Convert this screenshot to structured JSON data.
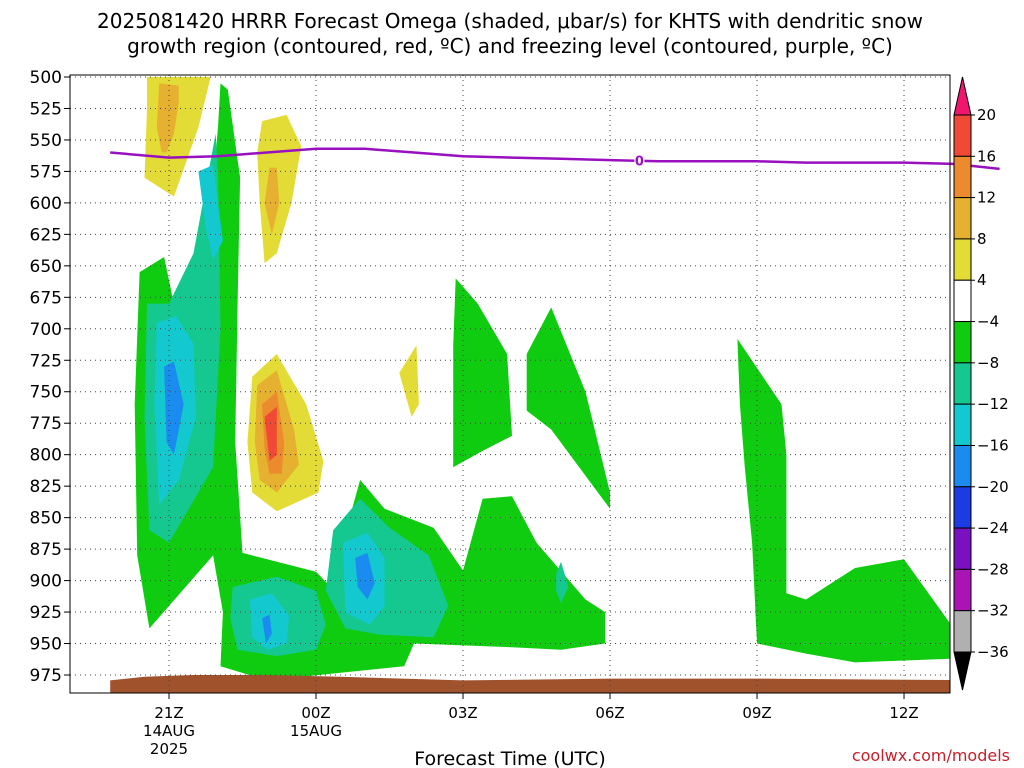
{
  "title": {
    "line1": "2025081420 HRRR Forecast Omega (shaded, μbar/s) for KHTS with dendritic snow",
    "line2": "growth region (contoured, red, ºC) and freezing level (contoured, purple, ºC)"
  },
  "credit": {
    "text": "coolwx.com/models",
    "color": "#c8202a"
  },
  "chart_data": {
    "type": "time-height contour",
    "xlabel": "Forecast Time (UTC)",
    "ylabel": "",
    "x_unit": "hours since 2025-08-14 20Z",
    "x_range": [
      20,
      42
    ],
    "y_range": [
      985,
      500
    ],
    "y_ticks": [
      500,
      525,
      550,
      575,
      600,
      625,
      650,
      675,
      700,
      725,
      750,
      775,
      800,
      825,
      850,
      875,
      900,
      925,
      950,
      975
    ],
    "x_ticks": [
      {
        "x": 21,
        "label": "21Z",
        "date": [
          "14AUG",
          "2025"
        ]
      },
      {
        "x": 24,
        "label": "00Z",
        "date": [
          "15AUG"
        ]
      },
      {
        "x": 27,
        "label": "03Z",
        "date": []
      },
      {
        "x": 30,
        "label": "06Z",
        "date": []
      },
      {
        "x": 33,
        "label": "09Z",
        "date": []
      },
      {
        "x": 36,
        "label": "12Z",
        "date": []
      }
    ],
    "grid": true,
    "colorbar": {
      "labels": [
        "20",
        "16",
        "12",
        "8",
        "4",
        "−4",
        "−8",
        "−12",
        "−16",
        "−20",
        "−24",
        "−28",
        "−32",
        "−36"
      ],
      "colors": [
        "#f0156e",
        "#f04a36",
        "#ec8a2e",
        "#e6b030",
        "#e4dc36",
        "#ffffff",
        "#10cc10",
        "#14c890",
        "#14c8d0",
        "#1a8cf0",
        "#1a3ce0",
        "#7a10c0",
        "#aa14b4",
        "#b0b0b0",
        "#000000"
      ]
    },
    "freezing_level": {
      "label": "0",
      "color": "#9910c0",
      "points": [
        [
          19.8,
          560
        ],
        [
          21,
          564
        ],
        [
          22,
          563
        ],
        [
          23,
          560
        ],
        [
          24,
          557
        ],
        [
          25,
          557
        ],
        [
          26,
          560
        ],
        [
          27,
          563
        ],
        [
          28,
          564
        ],
        [
          29,
          565
        ],
        [
          30,
          566
        ],
        [
          31,
          567
        ],
        [
          32,
          567
        ],
        [
          33,
          567
        ],
        [
          34,
          568
        ],
        [
          35,
          568
        ],
        [
          36,
          568
        ],
        [
          37,
          569
        ],
        [
          37.95,
          573
        ]
      ]
    },
    "shaded_regions": [
      {
        "value": 4,
        "color": "#e4dc36",
        "points": [
          [
            20.55,
            500
          ],
          [
            21.85,
            500
          ],
          [
            21.6,
            540
          ],
          [
            21.1,
            595
          ],
          [
            20.5,
            580
          ],
          [
            20.55,
            525
          ]
        ]
      },
      {
        "value": 8,
        "color": "#e6b030",
        "points": [
          [
            20.8,
            505
          ],
          [
            21.2,
            507
          ],
          [
            21.2,
            520
          ],
          [
            21.1,
            545
          ],
          [
            20.95,
            560
          ],
          [
            20.85,
            560
          ],
          [
            20.75,
            540
          ]
        ]
      },
      {
        "value": 4,
        "color": "#e4dc36",
        "points": [
          [
            22.9,
            535
          ],
          [
            23.4,
            530
          ],
          [
            23.7,
            555
          ],
          [
            23.5,
            600
          ],
          [
            23.2,
            640
          ],
          [
            22.95,
            648
          ],
          [
            22.85,
            600
          ],
          [
            22.8,
            560
          ]
        ]
      },
      {
        "value": 8,
        "color": "#e6b030",
        "points": [
          [
            23.05,
            572
          ],
          [
            23.2,
            572
          ],
          [
            23.25,
            600
          ],
          [
            23.1,
            625
          ],
          [
            22.95,
            600
          ]
        ]
      },
      {
        "value": 4,
        "color": "#e4dc36",
        "points": [
          [
            22.7,
            738
          ],
          [
            23.2,
            720
          ],
          [
            23.8,
            760
          ],
          [
            24.15,
            805
          ],
          [
            24.05,
            830
          ],
          [
            23.2,
            845
          ],
          [
            22.7,
            830
          ],
          [
            22.6,
            790
          ]
        ]
      },
      {
        "value": 8,
        "color": "#e6b030",
        "points": [
          [
            22.8,
            745
          ],
          [
            23.2,
            733
          ],
          [
            23.55,
            780
          ],
          [
            23.65,
            808
          ],
          [
            23.2,
            830
          ],
          [
            22.85,
            820
          ],
          [
            22.75,
            790
          ]
        ]
      },
      {
        "value": 12,
        "color": "#ec8a2e",
        "points": [
          [
            22.9,
            760
          ],
          [
            23.2,
            750
          ],
          [
            23.35,
            790
          ],
          [
            23.3,
            815
          ],
          [
            23.05,
            815
          ],
          [
            22.95,
            795
          ]
        ]
      },
      {
        "value": 16,
        "color": "#f04a36",
        "points": [
          [
            22.95,
            770
          ],
          [
            23.2,
            762
          ],
          [
            23.2,
            800
          ],
          [
            23.05,
            805
          ]
        ]
      },
      {
        "value": 4,
        "color": "#e4dc36",
        "points": [
          [
            25.7,
            735
          ],
          [
            26.05,
            713
          ],
          [
            26.1,
            760
          ],
          [
            25.95,
            770
          ]
        ]
      },
      {
        "value": -4,
        "color": "#10cc10",
        "points": [
          [
            20.4,
            655
          ],
          [
            20.9,
            643
          ],
          [
            21.1,
            680
          ],
          [
            21.8,
            625
          ],
          [
            22.0,
            540
          ],
          [
            22.05,
            505
          ],
          [
            22.2,
            510
          ],
          [
            22.45,
            580
          ],
          [
            22.4,
            680
          ],
          [
            22.35,
            790
          ],
          [
            22.5,
            878
          ],
          [
            24.0,
            893
          ],
          [
            24.3,
            905
          ],
          [
            24.9,
            820
          ],
          [
            25.4,
            843
          ],
          [
            26.4,
            858
          ],
          [
            27.0,
            892
          ],
          [
            27.4,
            835
          ],
          [
            28.0,
            833
          ],
          [
            28.5,
            870
          ],
          [
            29.5,
            915
          ],
          [
            29.9,
            925
          ],
          [
            29.9,
            950
          ],
          [
            29.0,
            955
          ],
          [
            28.0,
            953
          ],
          [
            26.0,
            950
          ],
          [
            25.8,
            968
          ],
          [
            23.0,
            978
          ],
          [
            22.05,
            968
          ],
          [
            22.1,
            925
          ],
          [
            21.9,
            880
          ],
          [
            20.6,
            938
          ],
          [
            20.35,
            880
          ],
          [
            20.3,
            760
          ]
        ]
      },
      {
        "value": -8,
        "color": "#14c890",
        "points": [
          [
            20.55,
            680
          ],
          [
            21.0,
            680
          ],
          [
            21.5,
            640
          ],
          [
            21.95,
            545
          ],
          [
            22.0,
            580
          ],
          [
            22.05,
            700
          ],
          [
            21.9,
            810
          ],
          [
            21.0,
            870
          ],
          [
            20.6,
            860
          ],
          [
            20.5,
            770
          ]
        ]
      },
      {
        "value": -12,
        "color": "#14c8d0",
        "points": [
          [
            20.75,
            695
          ],
          [
            21.15,
            690
          ],
          [
            21.5,
            712
          ],
          [
            21.55,
            770
          ],
          [
            21.2,
            820
          ],
          [
            20.8,
            840
          ],
          [
            20.7,
            760
          ]
        ]
      },
      {
        "value": -12,
        "color": "#14c8d0",
        "points": [
          [
            21.6,
            575
          ],
          [
            21.9,
            570
          ],
          [
            22.1,
            630
          ],
          [
            21.9,
            645
          ],
          [
            21.75,
            620
          ]
        ]
      },
      {
        "value": -16,
        "color": "#1a8cf0",
        "points": [
          [
            20.9,
            730
          ],
          [
            21.1,
            726
          ],
          [
            21.3,
            760
          ],
          [
            21.1,
            800
          ],
          [
            20.95,
            790
          ]
        ]
      },
      {
        "value": -8,
        "color": "#14c890",
        "points": [
          [
            24.35,
            860
          ],
          [
            24.9,
            835
          ],
          [
            25.5,
            858
          ],
          [
            26.3,
            880
          ],
          [
            26.7,
            920
          ],
          [
            26.4,
            945
          ],
          [
            25.3,
            943
          ],
          [
            24.6,
            938
          ],
          [
            24.2,
            908
          ]
        ]
      },
      {
        "value": -12,
        "color": "#14c8d0",
        "points": [
          [
            24.55,
            870
          ],
          [
            25.05,
            862
          ],
          [
            25.4,
            882
          ],
          [
            25.4,
            920
          ],
          [
            25.1,
            935
          ],
          [
            24.6,
            925
          ]
        ]
      },
      {
        "value": -16,
        "color": "#1a8cf0",
        "points": [
          [
            24.8,
            882
          ],
          [
            25.05,
            878
          ],
          [
            25.2,
            902
          ],
          [
            25.05,
            915
          ],
          [
            24.85,
            905
          ]
        ]
      },
      {
        "value": -8,
        "color": "#14c890",
        "points": [
          [
            22.3,
            905
          ],
          [
            23.2,
            897
          ],
          [
            24.0,
            908
          ],
          [
            24.2,
            935
          ],
          [
            24.0,
            955
          ],
          [
            23.2,
            960
          ],
          [
            22.4,
            955
          ],
          [
            22.25,
            930
          ]
        ]
      },
      {
        "value": -12,
        "color": "#14c8d0",
        "points": [
          [
            22.65,
            915
          ],
          [
            23.1,
            910
          ],
          [
            23.45,
            928
          ],
          [
            23.4,
            950
          ],
          [
            23.0,
            955
          ],
          [
            22.7,
            945
          ]
        ]
      },
      {
        "value": -16,
        "color": "#1a8cf0",
        "points": [
          [
            22.9,
            930
          ],
          [
            23.05,
            927
          ],
          [
            23.1,
            942
          ],
          [
            22.98,
            950
          ]
        ]
      },
      {
        "value": -8,
        "color": "#14c890",
        "points": [
          [
            28.9,
            895
          ],
          [
            29.0,
            885
          ],
          [
            29.15,
            905
          ],
          [
            29.0,
            918
          ],
          [
            28.9,
            908
          ]
        ]
      },
      {
        "value": -4,
        "color": "#10cc10",
        "points": [
          [
            26.8,
            713
          ],
          [
            26.85,
            660
          ],
          [
            27.3,
            680
          ],
          [
            27.9,
            720
          ],
          [
            28.0,
            785
          ],
          [
            27.4,
            797
          ],
          [
            26.8,
            810
          ]
        ]
      },
      {
        "value": -4,
        "color": "#10cc10",
        "points": [
          [
            28.3,
            720
          ],
          [
            28.8,
            683
          ],
          [
            29.5,
            750
          ],
          [
            30.0,
            830
          ],
          [
            30.0,
            843
          ],
          [
            28.8,
            780
          ],
          [
            28.3,
            765
          ]
        ]
      },
      {
        "value": -4,
        "color": "#10cc10",
        "points": [
          [
            32.6,
            708
          ],
          [
            33.5,
            760
          ],
          [
            33.6,
            800
          ],
          [
            33.6,
            910
          ],
          [
            34.0,
            915
          ],
          [
            35.0,
            890
          ],
          [
            36.0,
            883
          ],
          [
            37.05,
            940
          ],
          [
            37.2,
            960
          ],
          [
            37.0,
            962
          ],
          [
            35.0,
            965
          ],
          [
            34.0,
            958
          ],
          [
            33.0,
            950
          ],
          [
            32.9,
            870
          ],
          [
            32.75,
            810
          ],
          [
            32.65,
            760
          ]
        ]
      }
    ],
    "ground": {
      "color": "#a0522d",
      "points": [
        [
          19.8,
          978
        ],
        [
          20.5,
          976
        ],
        [
          21.5,
          975
        ],
        [
          23.0,
          975
        ],
        [
          24.5,
          976
        ],
        [
          27.0,
          978
        ],
        [
          30.0,
          977
        ],
        [
          33.0,
          977
        ],
        [
          37.95,
          978
        ],
        [
          37.95,
          985
        ],
        [
          19.8,
          985
        ]
      ]
    }
  }
}
